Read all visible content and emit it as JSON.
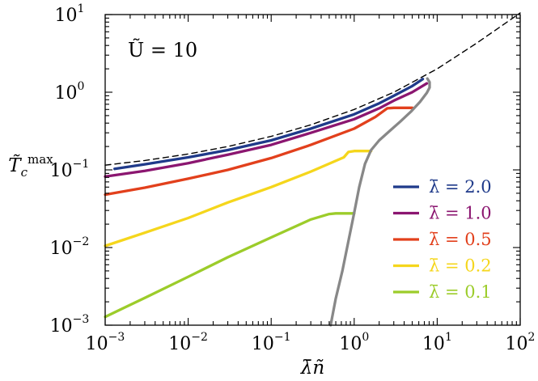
{
  "chart_data": {
    "type": "line",
    "x_scale": "log",
    "y_scale": "log",
    "xlim": [
      0.001,
      100
    ],
    "ylim": [
      0.001,
      10
    ],
    "x_ticks": [
      {
        "base": "10",
        "exp": "−3"
      },
      {
        "base": "10",
        "exp": "−2"
      },
      {
        "base": "10",
        "exp": "−1"
      },
      {
        "base": "10",
        "exp": "0"
      },
      {
        "base": "10",
        "exp": "1"
      },
      {
        "base": "10",
        "exp": "2"
      }
    ],
    "y_ticks": [
      {
        "base": "10",
        "exp": "−3"
      },
      {
        "base": "10",
        "exp": "−2"
      },
      {
        "base": "10",
        "exp": "−1"
      },
      {
        "base": "10",
        "exp": "0"
      },
      {
        "base": "10",
        "exp": "1"
      }
    ],
    "xlabel": "λ̄ñ",
    "ylabel": {
      "main": "T̃",
      "sub": "c",
      "sup": "max"
    },
    "annotation": "Ũ = 10",
    "legend_position": "lower-right",
    "grid": false,
    "series": [
      {
        "name": "λ̄ = 2.0",
        "color": "#1f3a8a",
        "style": "solid",
        "x": [
          0.0013,
          0.003,
          0.01,
          0.03,
          0.1,
          0.3,
          1,
          2,
          3,
          5,
          6.7
        ],
        "y": [
          0.103,
          0.118,
          0.145,
          0.18,
          0.24,
          0.34,
          0.52,
          0.72,
          0.9,
          1.2,
          1.48
        ]
      },
      {
        "name": "λ̄ = 1.0",
        "color": "#8b1670",
        "style": "solid",
        "x": [
          0.001,
          0.003,
          0.01,
          0.03,
          0.1,
          0.3,
          1,
          2,
          3,
          5,
          7.5
        ],
        "y": [
          0.082,
          0.097,
          0.122,
          0.157,
          0.21,
          0.3,
          0.45,
          0.62,
          0.78,
          1.0,
          1.3
        ]
      },
      {
        "name": "λ̄ = 0.5",
        "color": "#e2401c",
        "style": "solid",
        "x": [
          0.001,
          0.003,
          0.01,
          0.03,
          0.1,
          0.3,
          1,
          1.8,
          2.5,
          3,
          5
        ],
        "y": [
          0.048,
          0.059,
          0.077,
          0.1,
          0.142,
          0.21,
          0.34,
          0.48,
          0.62,
          0.63,
          0.63
        ]
      },
      {
        "name": "λ̄ = 0.2",
        "color": "#f5d61c",
        "style": "solid",
        "x": [
          0.001,
          0.003,
          0.01,
          0.03,
          0.1,
          0.3,
          0.75,
          0.85,
          1.0,
          1.6
        ],
        "y": [
          0.0105,
          0.0155,
          0.024,
          0.038,
          0.06,
          0.095,
          0.145,
          0.17,
          0.175,
          0.175
        ]
      },
      {
        "name": "λ̄ = 0.1",
        "color": "#9ccc2a",
        "style": "solid",
        "x": [
          0.001,
          0.003,
          0.01,
          0.03,
          0.1,
          0.3,
          0.5,
          0.6,
          0.7,
          1.0
        ],
        "y": [
          0.00128,
          0.00225,
          0.0042,
          0.0075,
          0.0135,
          0.023,
          0.027,
          0.0275,
          0.0275,
          0.0275
        ]
      },
      {
        "name": "",
        "color": "#888888",
        "style": "solid",
        "in_legend": false,
        "x": [
          0.52,
          0.6,
          0.72,
          0.85,
          1.0,
          1.15,
          1.35,
          1.6,
          2.0,
          2.7,
          3.6,
          4.8,
          6.2,
          7.5,
          8.1,
          8.1,
          7.6
        ],
        "y": [
          0.001,
          0.0022,
          0.005,
          0.012,
          0.028,
          0.06,
          0.12,
          0.18,
          0.24,
          0.32,
          0.42,
          0.56,
          0.75,
          0.98,
          1.15,
          1.35,
          1.5
        ]
      },
      {
        "name": "",
        "color": "#000000",
        "style": "dashed",
        "in_legend": false,
        "x": [
          0.001,
          0.003,
          0.01,
          0.03,
          0.1,
          0.3,
          1,
          3,
          10,
          30,
          100
        ],
        "y": [
          0.115,
          0.132,
          0.16,
          0.2,
          0.27,
          0.38,
          0.6,
          1.0,
          2.0,
          4.3,
          10.5
        ]
      }
    ]
  }
}
